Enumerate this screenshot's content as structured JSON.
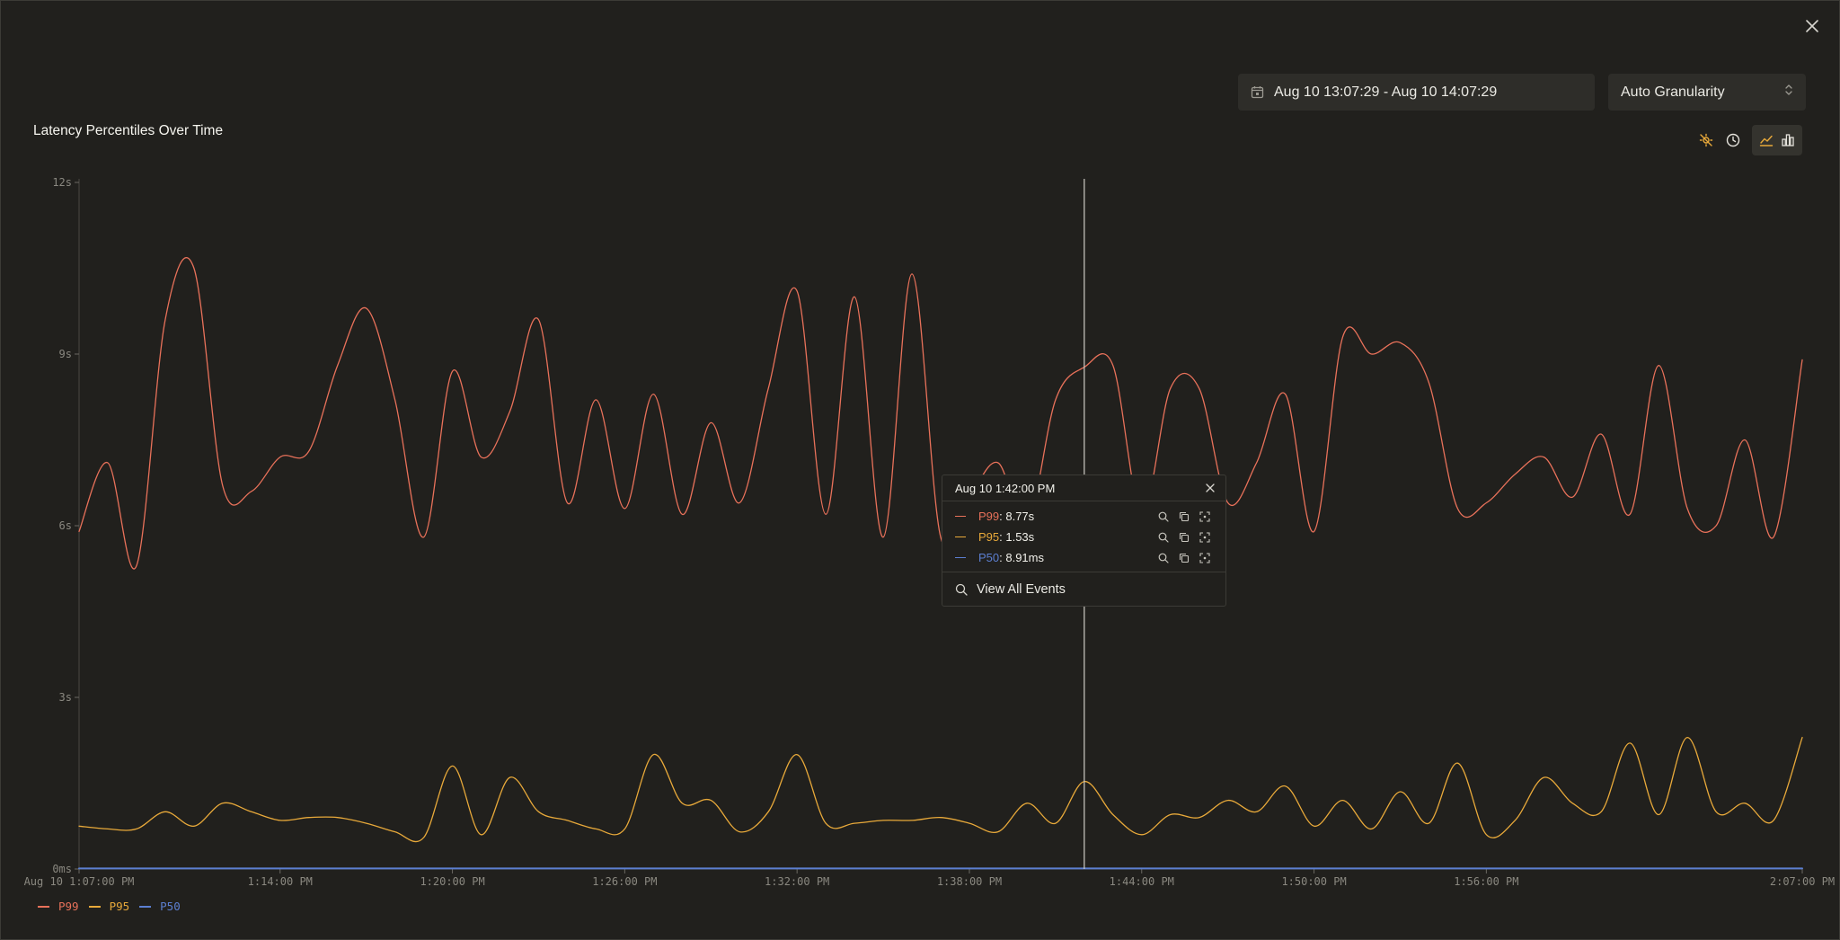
{
  "header": {
    "date_range": "Aug 10 13:07:29 - Aug 10 14:07:29",
    "granularity": "Auto Granularity"
  },
  "chart_title": "Latency Percentiles Over Time",
  "toolbar": {
    "icons": [
      "event-markers-off-icon",
      "clock-icon",
      "line-chart-icon",
      "bar-chart-icon"
    ],
    "accent": "#e8a93a"
  },
  "legend": [
    {
      "name": "P99",
      "color": "#e8715a"
    },
    {
      "name": "P95",
      "color": "#e8a93a"
    },
    {
      "name": "P50",
      "color": "#5c7fd1"
    }
  ],
  "tooltip": {
    "title": "Aug 10 1:42:00 PM",
    "rows": [
      {
        "name": "P99",
        "value": ": 8.77s",
        "color": "#e8715a"
      },
      {
        "name": "P95",
        "value": ": 1.53s",
        "color": "#e8a93a"
      },
      {
        "name": "P50",
        "value": ": 8.91ms",
        "color": "#5c7fd1"
      }
    ],
    "view_all": "View All Events"
  },
  "chart_data": {
    "type": "line",
    "y_tick_labels": [
      "0ms",
      "3s",
      "6s",
      "9s",
      "12s"
    ],
    "ylim": [
      0,
      12
    ],
    "x_tick_labels": [
      "Aug 10 1:07:00 PM",
      "1:14:00 PM",
      "1:20:00 PM",
      "1:26:00 PM",
      "1:32:00 PM",
      "1:38:00 PM",
      "1:44:00 PM",
      "1:50:00 PM",
      "1:56:00 PM",
      "2:07:00 PM"
    ],
    "x_tick_minutes": [
      67,
      74,
      80,
      86,
      92,
      98,
      104,
      110,
      116,
      127
    ],
    "xlim_minutes": [
      67,
      127
    ],
    "crosshair_minute": 102,
    "series": [
      {
        "name": "P99",
        "color": "#e8715a",
        "points": [
          [
            67,
            5.9
          ],
          [
            68,
            7.1
          ],
          [
            69,
            5.3
          ],
          [
            70,
            9.6
          ],
          [
            71,
            10.5
          ],
          [
            72,
            6.7
          ],
          [
            73,
            6.6
          ],
          [
            74,
            7.2
          ],
          [
            75,
            7.3
          ],
          [
            76,
            8.8
          ],
          [
            77,
            9.8
          ],
          [
            78,
            8.2
          ],
          [
            79,
            5.8
          ],
          [
            80,
            8.7
          ],
          [
            81,
            7.2
          ],
          [
            82,
            8.0
          ],
          [
            83,
            9.6
          ],
          [
            84,
            6.4
          ],
          [
            85,
            8.2
          ],
          [
            86,
            6.3
          ],
          [
            87,
            8.3
          ],
          [
            88,
            6.2
          ],
          [
            89,
            7.8
          ],
          [
            90,
            6.4
          ],
          [
            91,
            8.4
          ],
          [
            92,
            10.1
          ],
          [
            93,
            6.2
          ],
          [
            94,
            10.0
          ],
          [
            95,
            5.8
          ],
          [
            96,
            10.4
          ],
          [
            97,
            5.8
          ],
          [
            98,
            6.5
          ],
          [
            99,
            7.1
          ],
          [
            100,
            6.0
          ],
          [
            101,
            8.2
          ],
          [
            102,
            8.77
          ],
          [
            103,
            8.8
          ],
          [
            104,
            6.2
          ],
          [
            105,
            8.4
          ],
          [
            106,
            8.4
          ],
          [
            107,
            6.4
          ],
          [
            108,
            7.1
          ],
          [
            109,
            8.3
          ],
          [
            110,
            5.9
          ],
          [
            111,
            9.3
          ],
          [
            112,
            9.0
          ],
          [
            113,
            9.2
          ],
          [
            114,
            8.5
          ],
          [
            115,
            6.3
          ],
          [
            116,
            6.4
          ],
          [
            117,
            6.9
          ],
          [
            118,
            7.2
          ],
          [
            119,
            6.5
          ],
          [
            120,
            7.6
          ],
          [
            121,
            6.2
          ],
          [
            122,
            8.8
          ],
          [
            123,
            6.3
          ],
          [
            124,
            6.0
          ],
          [
            125,
            7.5
          ],
          [
            126,
            5.8
          ],
          [
            127,
            8.9
          ]
        ]
      },
      {
        "name": "P95",
        "color": "#e8a93a",
        "points": [
          [
            67,
            0.75
          ],
          [
            68,
            0.7
          ],
          [
            69,
            0.7
          ],
          [
            70,
            1.0
          ],
          [
            71,
            0.75
          ],
          [
            72,
            1.15
          ],
          [
            73,
            1.0
          ],
          [
            74,
            0.85
          ],
          [
            75,
            0.9
          ],
          [
            76,
            0.9
          ],
          [
            77,
            0.8
          ],
          [
            78,
            0.65
          ],
          [
            79,
            0.55
          ],
          [
            80,
            1.8
          ],
          [
            81,
            0.6
          ],
          [
            82,
            1.6
          ],
          [
            83,
            1.0
          ],
          [
            84,
            0.85
          ],
          [
            85,
            0.7
          ],
          [
            86,
            0.7
          ],
          [
            87,
            2.0
          ],
          [
            88,
            1.15
          ],
          [
            89,
            1.2
          ],
          [
            90,
            0.65
          ],
          [
            91,
            1.0
          ],
          [
            92,
            2.0
          ],
          [
            93,
            0.8
          ],
          [
            94,
            0.8
          ],
          [
            95,
            0.85
          ],
          [
            96,
            0.85
          ],
          [
            97,
            0.9
          ],
          [
            98,
            0.8
          ],
          [
            99,
            0.65
          ],
          [
            100,
            1.15
          ],
          [
            101,
            0.8
          ],
          [
            102,
            1.53
          ],
          [
            103,
            0.95
          ],
          [
            104,
            0.6
          ],
          [
            105,
            0.95
          ],
          [
            106,
            0.9
          ],
          [
            107,
            1.2
          ],
          [
            108,
            1.0
          ],
          [
            109,
            1.45
          ],
          [
            110,
            0.75
          ],
          [
            111,
            1.2
          ],
          [
            112,
            0.7
          ],
          [
            113,
            1.35
          ],
          [
            114,
            0.8
          ],
          [
            115,
            1.85
          ],
          [
            116,
            0.6
          ],
          [
            117,
            0.85
          ],
          [
            118,
            1.6
          ],
          [
            119,
            1.15
          ],
          [
            120,
            1.0
          ],
          [
            121,
            2.2
          ],
          [
            122,
            0.95
          ],
          [
            123,
            2.3
          ],
          [
            124,
            1.0
          ],
          [
            125,
            1.15
          ],
          [
            126,
            0.85
          ],
          [
            127,
            2.3
          ]
        ]
      },
      {
        "name": "P50",
        "color": "#5c7fd1",
        "points": [
          [
            67,
            0.009
          ],
          [
            72,
            0.009
          ],
          [
            77,
            0.009
          ],
          [
            82,
            0.009
          ],
          [
            87,
            0.009
          ],
          [
            92,
            0.009
          ],
          [
            97,
            0.009
          ],
          [
            102,
            0.0089
          ],
          [
            107,
            0.009
          ],
          [
            112,
            0.009
          ],
          [
            117,
            0.009
          ],
          [
            122,
            0.009
          ],
          [
            127,
            0.009
          ]
        ]
      }
    ]
  }
}
